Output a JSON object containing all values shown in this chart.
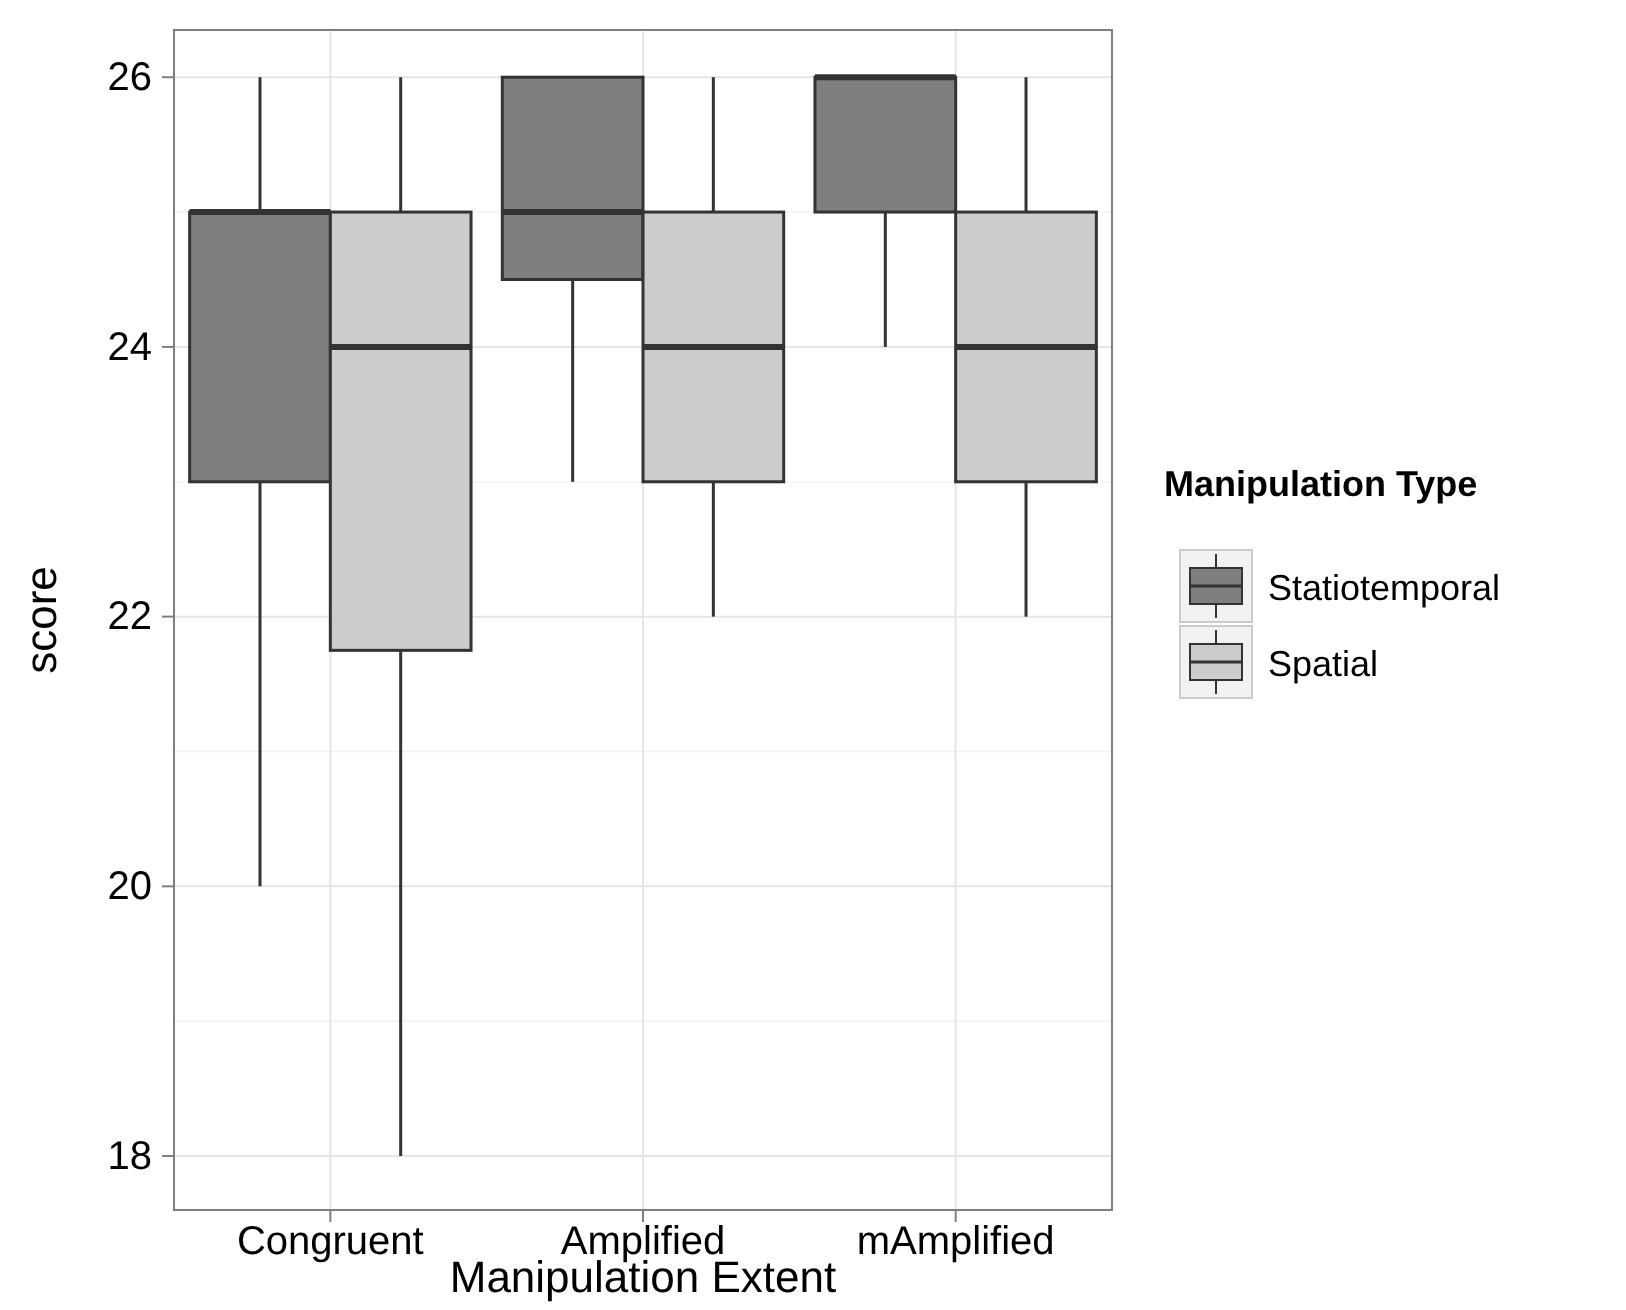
{
  "chart_data": {
    "type": "box",
    "xlabel": "Manipulation Extent",
    "ylabel": "score",
    "legend_title": "Manipulation Type",
    "categories": [
      "Congruent",
      "Amplified",
      "mAmplified"
    ],
    "series": [
      {
        "name": "Statiotemporal",
        "color": "#7f7f7f",
        "boxes": [
          {
            "low": 20,
            "q1": 23,
            "median": 25,
            "q3": 25,
            "high": 26
          },
          {
            "low": 23,
            "q1": 24.5,
            "median": 25,
            "q3": 26,
            "high": 26
          },
          {
            "low": 24,
            "q1": 25,
            "median": 26,
            "q3": 26,
            "high": 26
          }
        ]
      },
      {
        "name": "Spatial",
        "color": "#cccccc",
        "boxes": [
          {
            "low": 18,
            "q1": 21.75,
            "median": 24,
            "q3": 25,
            "high": 26
          },
          {
            "low": 22,
            "q1": 23,
            "median": 24,
            "q3": 25,
            "high": 26
          },
          {
            "low": 22,
            "q1": 23,
            "median": 24,
            "q3": 25,
            "high": 26
          }
        ]
      }
    ],
    "ylim": [
      17.6,
      26.35
    ],
    "yticks": [
      18,
      20,
      22,
      24,
      26
    ],
    "grid": true,
    "legend": "right"
  }
}
